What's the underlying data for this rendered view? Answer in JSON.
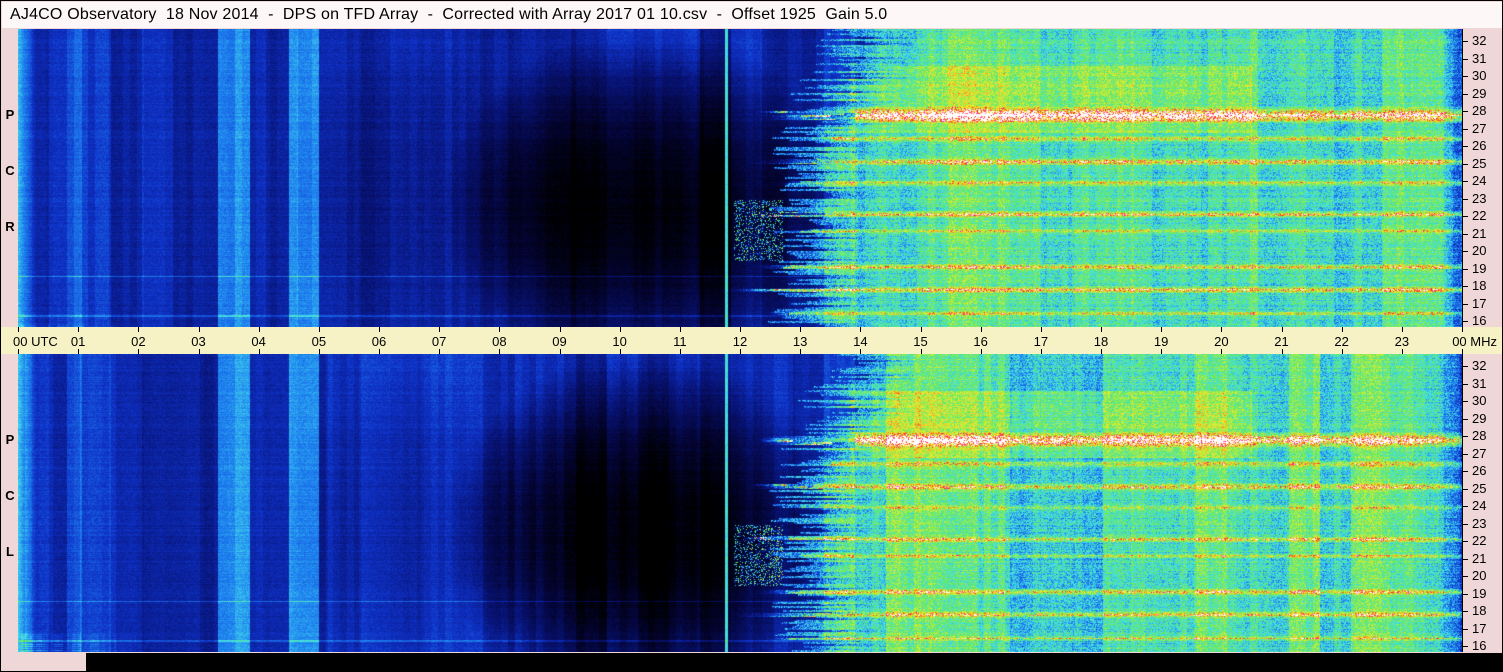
{
  "title": "AJ4CO Observatory  18 Nov 2014  -  DPS on TFD Array  -  Corrected with Array 2017 01 10.csv  -  Offset 1925  Gain 5.0",
  "header": {
    "observatory": "AJ4CO Observatory",
    "date": "18 Nov 2014",
    "instrument": "DPS on TFD Array",
    "correction": "Corrected with Array 2017 01 10.csv",
    "offset": "Offset 1925",
    "gain": "Gain 5.0"
  },
  "panels": [
    {
      "id": "rcp",
      "label": "RCP"
    },
    {
      "id": "lcp",
      "label": "LCP"
    }
  ],
  "time_axis": {
    "left_label": "00 UTC",
    "right_label": "00 MHz",
    "hour_labels": [
      "01",
      "02",
      "03",
      "04",
      "05",
      "06",
      "07",
      "08",
      "09",
      "10",
      "11",
      "12",
      "13",
      "14",
      "15",
      "16",
      "17",
      "18",
      "19",
      "20",
      "21",
      "22",
      "23"
    ]
  },
  "frequency_axis": {
    "unit": "MHz",
    "labels": [
      "32",
      "31",
      "30",
      "29",
      "28",
      "27",
      "26",
      "25",
      "24",
      "23",
      "22",
      "21",
      "20",
      "19",
      "18",
      "17",
      "16"
    ]
  },
  "colors": {
    "page_bg": "#f0d7d7",
    "title_bg": "#fdf7f7",
    "time_strip_bg": "#f7f2c6",
    "axis_text": "#000000",
    "footer_bg": "#000000"
  },
  "chart_data": {
    "type": "heatmap",
    "title": "AJ4CO Observatory 18 Nov 2014 - DPS on TFD Array - Corrected with Array 2017 01 10.csv - Offset 1925 Gain 5.0",
    "x": {
      "label": "UTC",
      "range_hours": [
        0,
        24
      ],
      "ticks": [
        "00",
        "01",
        "02",
        "03",
        "04",
        "05",
        "06",
        "07",
        "08",
        "09",
        "10",
        "11",
        "12",
        "13",
        "14",
        "15",
        "16",
        "17",
        "18",
        "19",
        "20",
        "21",
        "22",
        "23",
        "00"
      ]
    },
    "y": {
      "label": "MHz",
      "range_mhz": [
        16,
        32
      ],
      "ticks": [
        32,
        31,
        30,
        29,
        28,
        27,
        26,
        25,
        24,
        23,
        22,
        21,
        20,
        19,
        18,
        17,
        16
      ]
    },
    "series": [
      {
        "name": "RCP",
        "description": "Right circular polarization dynamic power spectrum, 16-32 MHz over 24 h UTC"
      },
      {
        "name": "LCP",
        "description": "Left circular polarization dynamic power spectrum, 16-32 MHz over 24 h UTC"
      }
    ],
    "features": [
      {
        "time_utc": [
          0,
          12.5
        ],
        "freq_mhz": [
          16,
          32
        ],
        "description": "nighttime low-intensity region, deep blue background"
      },
      {
        "time_utc": [
          3.4,
          5.0
        ],
        "freq_mhz": [
          16,
          32
        ],
        "description": "two brighter vertical activity stripes"
      },
      {
        "time_utc": [
          0.8,
          1.05
        ],
        "freq_mhz": [
          16,
          32
        ],
        "description": "faint brighter vertical stripe"
      },
      {
        "time_utc": [
          7.5,
          12.4
        ],
        "freq_mhz": [
          16,
          31
        ],
        "description": "very dark near-black minimum centered near 10:30 UT"
      },
      {
        "time_utc": 11.8,
        "freq_mhz": [
          16,
          32
        ],
        "description": "narrow bright cyan vertical line marker"
      },
      {
        "time_utc": [
          12.4,
          13.8
        ],
        "freq_mhz": [
          16,
          32
        ],
        "description": "ragged transition with horizontal bright streak fingers"
      },
      {
        "time_utc": [
          13.5,
          24
        ],
        "freq_mhz": [
          16,
          32
        ],
        "description": "strong daytime broadband signal, green-yellow with red/magenta speckle"
      },
      {
        "time_utc": [
          14,
          23.7
        ],
        "freq_mhz": [
          27.3,
          28.3
        ],
        "description": "saturated white/red interference band"
      },
      {
        "time_utc": [
          13,
          24
        ],
        "freq_mhz": [
          25.0,
          25.4
        ],
        "description": "strong red interference band"
      },
      {
        "time_utc": [
          13,
          24
        ],
        "freq_mhz": [
          22.0,
          22.3
        ],
        "description": "strong red interference band"
      },
      {
        "time_utc": [
          13,
          24
        ],
        "freq_mhz": [
          19.0,
          19.3
        ],
        "description": "strong red interference band"
      },
      {
        "time_utc": [
          12.5,
          24
        ],
        "freq_mhz": [
          17.7,
          18.0
        ],
        "description": "strong red interference band"
      }
    ]
  }
}
